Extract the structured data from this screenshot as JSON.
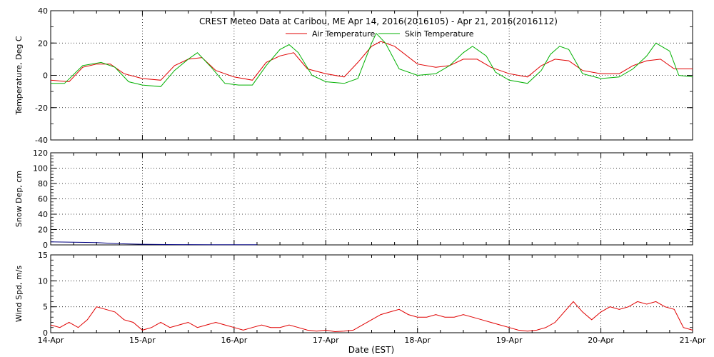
{
  "title": "CREST Meteo Data at Caribou, ME   Apr 14, 2016(2016105) - Apr 21, 2016(2016112)",
  "xlabel": "Date (EST)",
  "x_ticks": [
    "14-Apr",
    "15-Apr",
    "16-Apr",
    "17-Apr",
    "18-Apr",
    "19-Apr",
    "20-Apr",
    "21-Apr"
  ],
  "colors": {
    "air": "#e00000",
    "skin": "#00b000",
    "snow": "#000080",
    "wind": "#e00000",
    "axis": "#000000"
  },
  "chart_data": [
    {
      "type": "line",
      "ylabel": "Temperature, Deg C",
      "ylim": [
        -40,
        40
      ],
      "y_ticks": [
        "-40",
        "-20",
        "0",
        "20",
        "40"
      ],
      "y_tick_values": [
        -40,
        -20,
        0,
        20,
        40
      ],
      "x_unit": "days since 14-Apr",
      "legend": {
        "placement": "top-center",
        "entries": [
          "Air Temperature",
          "Skin Temperature"
        ]
      },
      "series": [
        {
          "name": "Air Temperature",
          "x": [
            0,
            0.2,
            0.35,
            0.5,
            0.65,
            0.8,
            1.0,
            1.2,
            1.35,
            1.5,
            1.65,
            1.8,
            2.0,
            2.2,
            2.35,
            2.5,
            2.65,
            2.8,
            3.0,
            3.2,
            3.35,
            3.5,
            3.6,
            3.75,
            4.0,
            4.2,
            4.35,
            4.5,
            4.65,
            4.8,
            5.0,
            5.2,
            5.35,
            5.5,
            5.65,
            5.8,
            6.0,
            6.2,
            6.35,
            6.5,
            6.65,
            6.8,
            7.0
          ],
          "y": [
            -3,
            -4,
            5,
            7,
            7,
            1,
            -2,
            -3,
            6,
            10,
            11,
            3,
            -1,
            -3,
            8,
            12,
            14,
            4,
            1,
            -1,
            8,
            18,
            21,
            18,
            7,
            5,
            6,
            10,
            10,
            5,
            1,
            -1,
            6,
            10,
            9,
            3,
            1,
            1,
            6,
            9,
            10,
            4,
            4
          ]
        },
        {
          "name": "Skin Temperature",
          "x": [
            0,
            0.15,
            0.35,
            0.55,
            0.7,
            0.85,
            1.0,
            1.2,
            1.35,
            1.5,
            1.6,
            1.75,
            1.9,
            2.05,
            2.2,
            2.35,
            2.5,
            2.6,
            2.7,
            2.85,
            3.0,
            3.2,
            3.35,
            3.5,
            3.55,
            3.65,
            3.8,
            4.0,
            4.2,
            4.35,
            4.5,
            4.6,
            4.75,
            4.85,
            5.0,
            5.2,
            5.35,
            5.45,
            5.55,
            5.65,
            5.8,
            6.0,
            6.2,
            6.35,
            6.5,
            6.6,
            6.75,
            6.85,
            7.0
          ],
          "y": [
            -5,
            -5,
            6,
            8,
            5,
            -4,
            -6,
            -7,
            3,
            10,
            14,
            5,
            -5,
            -6,
            -6,
            6,
            16,
            19,
            14,
            0,
            -4,
            -5,
            -2,
            20,
            26,
            20,
            4,
            0,
            1,
            6,
            14,
            18,
            12,
            2,
            -3,
            -5,
            3,
            13,
            18,
            16,
            1,
            -2,
            -1,
            4,
            12,
            20,
            15,
            0,
            -1
          ]
        }
      ]
    },
    {
      "type": "line",
      "ylabel": "Snow Dep, cm",
      "ylim": [
        0,
        120
      ],
      "y_ticks": [
        "0",
        "20",
        "40",
        "60",
        "80",
        "100",
        "120"
      ],
      "y_tick_values": [
        0,
        20,
        40,
        60,
        80,
        100,
        120
      ],
      "x_unit": "days since 14-Apr",
      "series": [
        {
          "name": "",
          "x": [
            0,
            0.25,
            0.5,
            0.75,
            1.0,
            1.25,
            1.5,
            1.75,
            2.0,
            2.25
          ],
          "y": [
            4,
            3.5,
            3,
            1.5,
            0.8,
            0.5,
            0.4,
            0.3,
            0.2,
            0.3
          ]
        }
      ]
    },
    {
      "type": "line",
      "ylabel": "Wind Spd, m/s",
      "ylim": [
        0,
        15
      ],
      "y_ticks": [
        "0",
        "5",
        "10",
        "15"
      ],
      "y_tick_values": [
        0,
        5,
        10,
        15
      ],
      "x_unit": "days since 14-Apr",
      "series": [
        {
          "name": "",
          "x": [
            0,
            0.1,
            0.2,
            0.3,
            0.4,
            0.5,
            0.6,
            0.7,
            0.8,
            0.9,
            1.0,
            1.1,
            1.2,
            1.3,
            1.4,
            1.5,
            1.6,
            1.7,
            1.8,
            1.9,
            2.0,
            2.1,
            2.2,
            2.3,
            2.4,
            2.5,
            2.6,
            2.7,
            2.8,
            2.9,
            3.0,
            3.1,
            3.2,
            3.3,
            3.4,
            3.5,
            3.6,
            3.7,
            3.8,
            3.9,
            4.0,
            4.1,
            4.2,
            4.3,
            4.4,
            4.5,
            4.6,
            4.7,
            4.8,
            4.9,
            5.0,
            5.1,
            5.2,
            5.3,
            5.4,
            5.5,
            5.6,
            5.7,
            5.8,
            5.9,
            6.0,
            6.1,
            6.2,
            6.3,
            6.4,
            6.5,
            6.6,
            6.7,
            6.8,
            6.9,
            7.0
          ],
          "y": [
            1.5,
            1,
            2,
            1,
            2.5,
            5,
            4.5,
            4,
            2.5,
            2,
            0.5,
            1,
            2,
            1,
            1.5,
            2,
            1,
            1.5,
            2,
            1.5,
            1,
            0.5,
            1,
            1.5,
            1,
            1,
            1.5,
            1,
            0.5,
            0.3,
            0.5,
            0.2,
            0.3,
            0.5,
            1.5,
            2.5,
            3.5,
            4,
            4.5,
            3.5,
            3,
            3,
            3.5,
            3,
            3,
            3.5,
            3,
            2.5,
            2,
            1.5,
            1,
            0.5,
            0.3,
            0.5,
            1,
            2,
            4,
            6,
            4,
            2.5,
            4,
            5,
            4.5,
            5,
            6,
            5.5,
            6,
            5,
            4.5,
            1,
            0.5
          ]
        }
      ]
    }
  ]
}
